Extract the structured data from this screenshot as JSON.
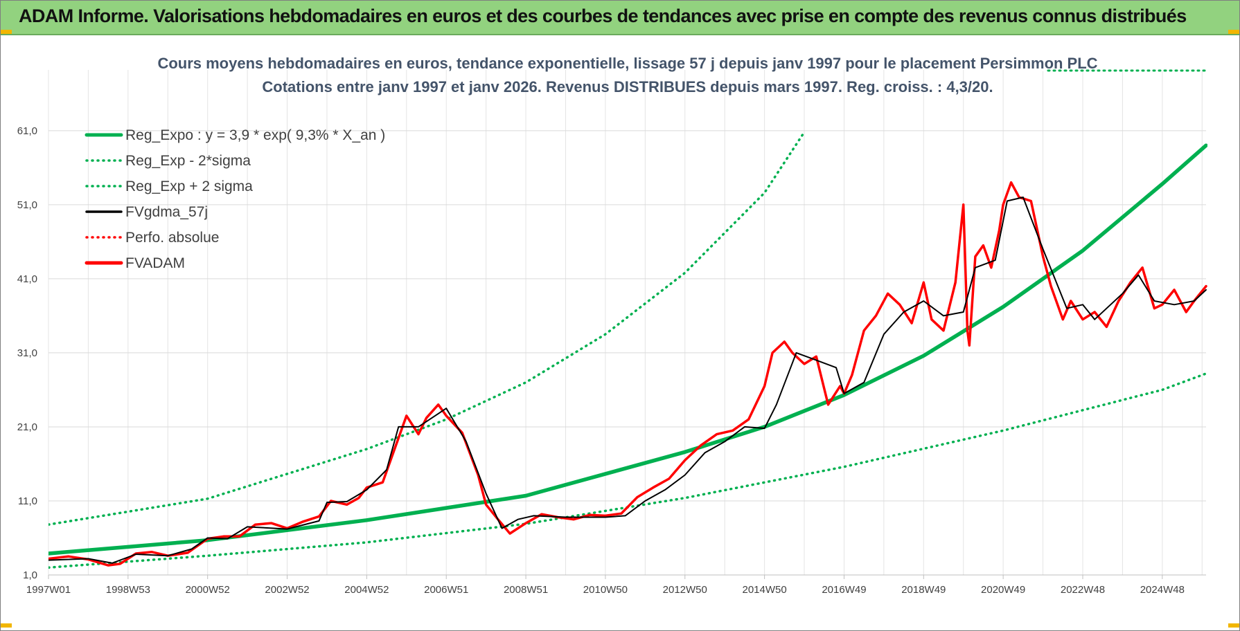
{
  "banner": {
    "title": "ADAM Informe. Valorisations hebdomadaires en euros et des courbes de tendances avec prise en compte des revenus connus distribués",
    "color": "#92d27f"
  },
  "chart_data": {
    "type": "line",
    "title": "Cours moyens hebdomadaires en euros, tendance exponentielle, lissage 57 j depuis janv 1997  pour le placement Persimmon PLC",
    "subtitle": "Cotations entre janv 1997 et janv 2026. Revenus DISTRIBUES depuis mars 1997.  Reg. croiss. : 4,3/20.",
    "xlabel": "",
    "ylabel": "",
    "ylim": [
      1,
      65
    ],
    "xlim": [
      1997.0,
      2026.1
    ],
    "grid": true,
    "legend_position": "top-left",
    "y_ticks": [
      "1,0",
      "11,0",
      "21,0",
      "31,0",
      "41,0",
      "51,0",
      "61,0"
    ],
    "y_tick_values": [
      1,
      11,
      21,
      31,
      41,
      51,
      61
    ],
    "x_ticks": [
      "1997W01",
      "1998W53",
      "2000W52",
      "2002W52",
      "2004W52",
      "2006W51",
      "2008W51",
      "2010W50",
      "2012W50",
      "2014W50",
      "2016W49",
      "2018W49",
      "2020W49",
      "2022W48",
      "2024W48"
    ],
    "x_tick_values": [
      1997.0,
      1999.0,
      2001.0,
      2003.0,
      2005.0,
      2007.0,
      2009.0,
      2011.0,
      2013.0,
      2015.0,
      2017.0,
      2019.0,
      2021.0,
      2023.0,
      2025.0
    ],
    "series": [
      {
        "name": "Reg_Expo : y = 3,9 * exp( 9,3% *  X_an )",
        "color": "#00b050",
        "style": "solid",
        "x": [
          1997.0,
          2001.0,
          2005.0,
          2009.0,
          2013.0,
          2015.0,
          2017.0,
          2019.0,
          2021.0,
          2023.0,
          2025.0,
          2026.1
        ],
        "values": [
          3.9,
          5.7,
          8.4,
          11.7,
          17.6,
          21.0,
          25.3,
          30.6,
          37.2,
          44.8,
          53.8,
          59.0
        ]
      },
      {
        "name": "Reg_Exp - 2*sigma",
        "color": "#00b050",
        "style": "dotted",
        "x": [
          1997.0,
          2001.0,
          2005.0,
          2009.0,
          2013.0,
          2017.0,
          2021.0,
          2025.0,
          2026.1
        ],
        "values": [
          2.0,
          3.6,
          5.4,
          7.9,
          11.4,
          15.6,
          20.5,
          26.0,
          28.2
        ]
      },
      {
        "name": "Reg_Exp + 2 sigma",
        "color": "#00b050",
        "style": "dotted",
        "x": [
          1997.0,
          2001.0,
          2005.0,
          2007.0,
          2009.0,
          2011.0,
          2013.0,
          2015.0,
          2016.0
        ],
        "values": [
          7.8,
          11.3,
          18.0,
          22.0,
          27.0,
          33.5,
          41.8,
          52.6,
          60.8
        ]
      },
      {
        "name": "FVgdma_57j",
        "color": "#000000",
        "style": "solid",
        "x": [
          1997.0,
          1998.0,
          1998.6,
          1999.2,
          2000.0,
          2000.6,
          2001.0,
          2001.5,
          2002.0,
          2003.0,
          2003.8,
          2004.0,
          2004.5,
          2005.0,
          2005.5,
          2005.8,
          2006.3,
          2007.0,
          2007.5,
          2008.0,
          2008.4,
          2008.8,
          2009.2,
          2010.0,
          2011.0,
          2011.5,
          2012.0,
          2012.5,
          2013.0,
          2013.5,
          2014.0,
          2014.5,
          2015.0,
          2015.3,
          2015.8,
          2016.3,
          2016.8,
          2017.0,
          2017.5,
          2018.0,
          2018.5,
          2019.0,
          2019.5,
          2020.0,
          2020.3,
          2020.8,
          2021.1,
          2021.5,
          2022.0,
          2022.3,
          2022.6,
          2023.0,
          2023.3,
          2023.6,
          2024.0,
          2024.4,
          2024.8,
          2025.3,
          2025.8,
          2026.1
        ],
        "values": [
          3.0,
          3.2,
          2.6,
          3.8,
          3.6,
          4.5,
          6.0,
          5.9,
          7.5,
          7.2,
          8.3,
          10.8,
          10.9,
          12.5,
          15.2,
          21.0,
          21.0,
          23.5,
          19.0,
          12.0,
          7.3,
          8.5,
          9.0,
          8.8,
          8.8,
          9.0,
          11.0,
          12.5,
          14.5,
          17.5,
          19.0,
          21.0,
          20.8,
          24.0,
          31.0,
          30.0,
          29.0,
          25.5,
          27.0,
          33.5,
          36.5,
          38.0,
          36.0,
          36.5,
          42.5,
          43.5,
          51.5,
          52.0,
          45.0,
          41.0,
          37.0,
          37.5,
          35.5,
          37.0,
          39.0,
          41.5,
          38.0,
          37.5,
          38.0,
          39.5
        ]
      },
      {
        "name": "Perfo. absolue",
        "color": "#ff0000",
        "style": "dotted",
        "x": [],
        "values": []
      },
      {
        "name": "FVADAM",
        "color": "#ff0000",
        "style": "solid",
        "x": [
          1997.0,
          1997.5,
          1998.0,
          1998.5,
          1998.8,
          1999.2,
          1999.6,
          2000.0,
          2000.5,
          2001.0,
          2001.4,
          2001.8,
          2002.2,
          2002.6,
          2003.0,
          2003.4,
          2003.8,
          2004.1,
          2004.5,
          2004.8,
          2005.0,
          2005.4,
          2005.7,
          2006.0,
          2006.3,
          2006.5,
          2006.8,
          2007.0,
          2007.4,
          2007.8,
          2008.0,
          2008.3,
          2008.6,
          2009.0,
          2009.4,
          2009.8,
          2010.2,
          2010.6,
          2011.0,
          2011.4,
          2011.8,
          2012.2,
          2012.6,
          2013.0,
          2013.4,
          2013.8,
          2014.2,
          2014.6,
          2015.0,
          2015.2,
          2015.5,
          2015.7,
          2016.0,
          2016.3,
          2016.6,
          2016.9,
          2017.0,
          2017.2,
          2017.5,
          2017.8,
          2018.1,
          2018.4,
          2018.7,
          2019.0,
          2019.2,
          2019.5,
          2019.8,
          2020.0,
          2020.1,
          2020.15,
          2020.3,
          2020.5,
          2020.7,
          2020.9,
          2021.0,
          2021.2,
          2021.4,
          2021.7,
          2022.0,
          2022.2,
          2022.5,
          2022.7,
          2023.0,
          2023.3,
          2023.6,
          2023.9,
          2024.2,
          2024.5,
          2024.8,
          2025.0,
          2025.3,
          2025.6,
          2025.8,
          2026.1
        ],
        "values": [
          3.2,
          3.5,
          3.1,
          2.3,
          2.5,
          3.9,
          4.1,
          3.6,
          4.0,
          5.9,
          6.2,
          6.2,
          7.8,
          8.0,
          7.3,
          8.2,
          8.9,
          11.0,
          10.5,
          11.4,
          12.8,
          13.5,
          18.0,
          22.5,
          20.0,
          22.2,
          24.0,
          22.5,
          20.2,
          14.5,
          10.5,
          8.5,
          6.6,
          8.0,
          9.2,
          8.8,
          8.5,
          9.1,
          9.0,
          9.3,
          11.5,
          12.8,
          14.0,
          16.5,
          18.5,
          20.0,
          20.5,
          22.0,
          26.5,
          31.0,
          32.5,
          31.0,
          29.5,
          30.5,
          24.0,
          26.5,
          25.5,
          28.0,
          34.0,
          36.0,
          39.0,
          37.5,
          35.0,
          40.5,
          35.5,
          34.0,
          40.5,
          51.0,
          34.0,
          32.0,
          44.0,
          45.5,
          42.5,
          47.5,
          51.0,
          54.0,
          52.0,
          51.5,
          44.0,
          40.0,
          35.5,
          38.0,
          35.5,
          36.5,
          34.5,
          38.0,
          40.5,
          42.5,
          37.0,
          37.5,
          39.5,
          36.5,
          38.0,
          40.0
        ]
      }
    ]
  }
}
